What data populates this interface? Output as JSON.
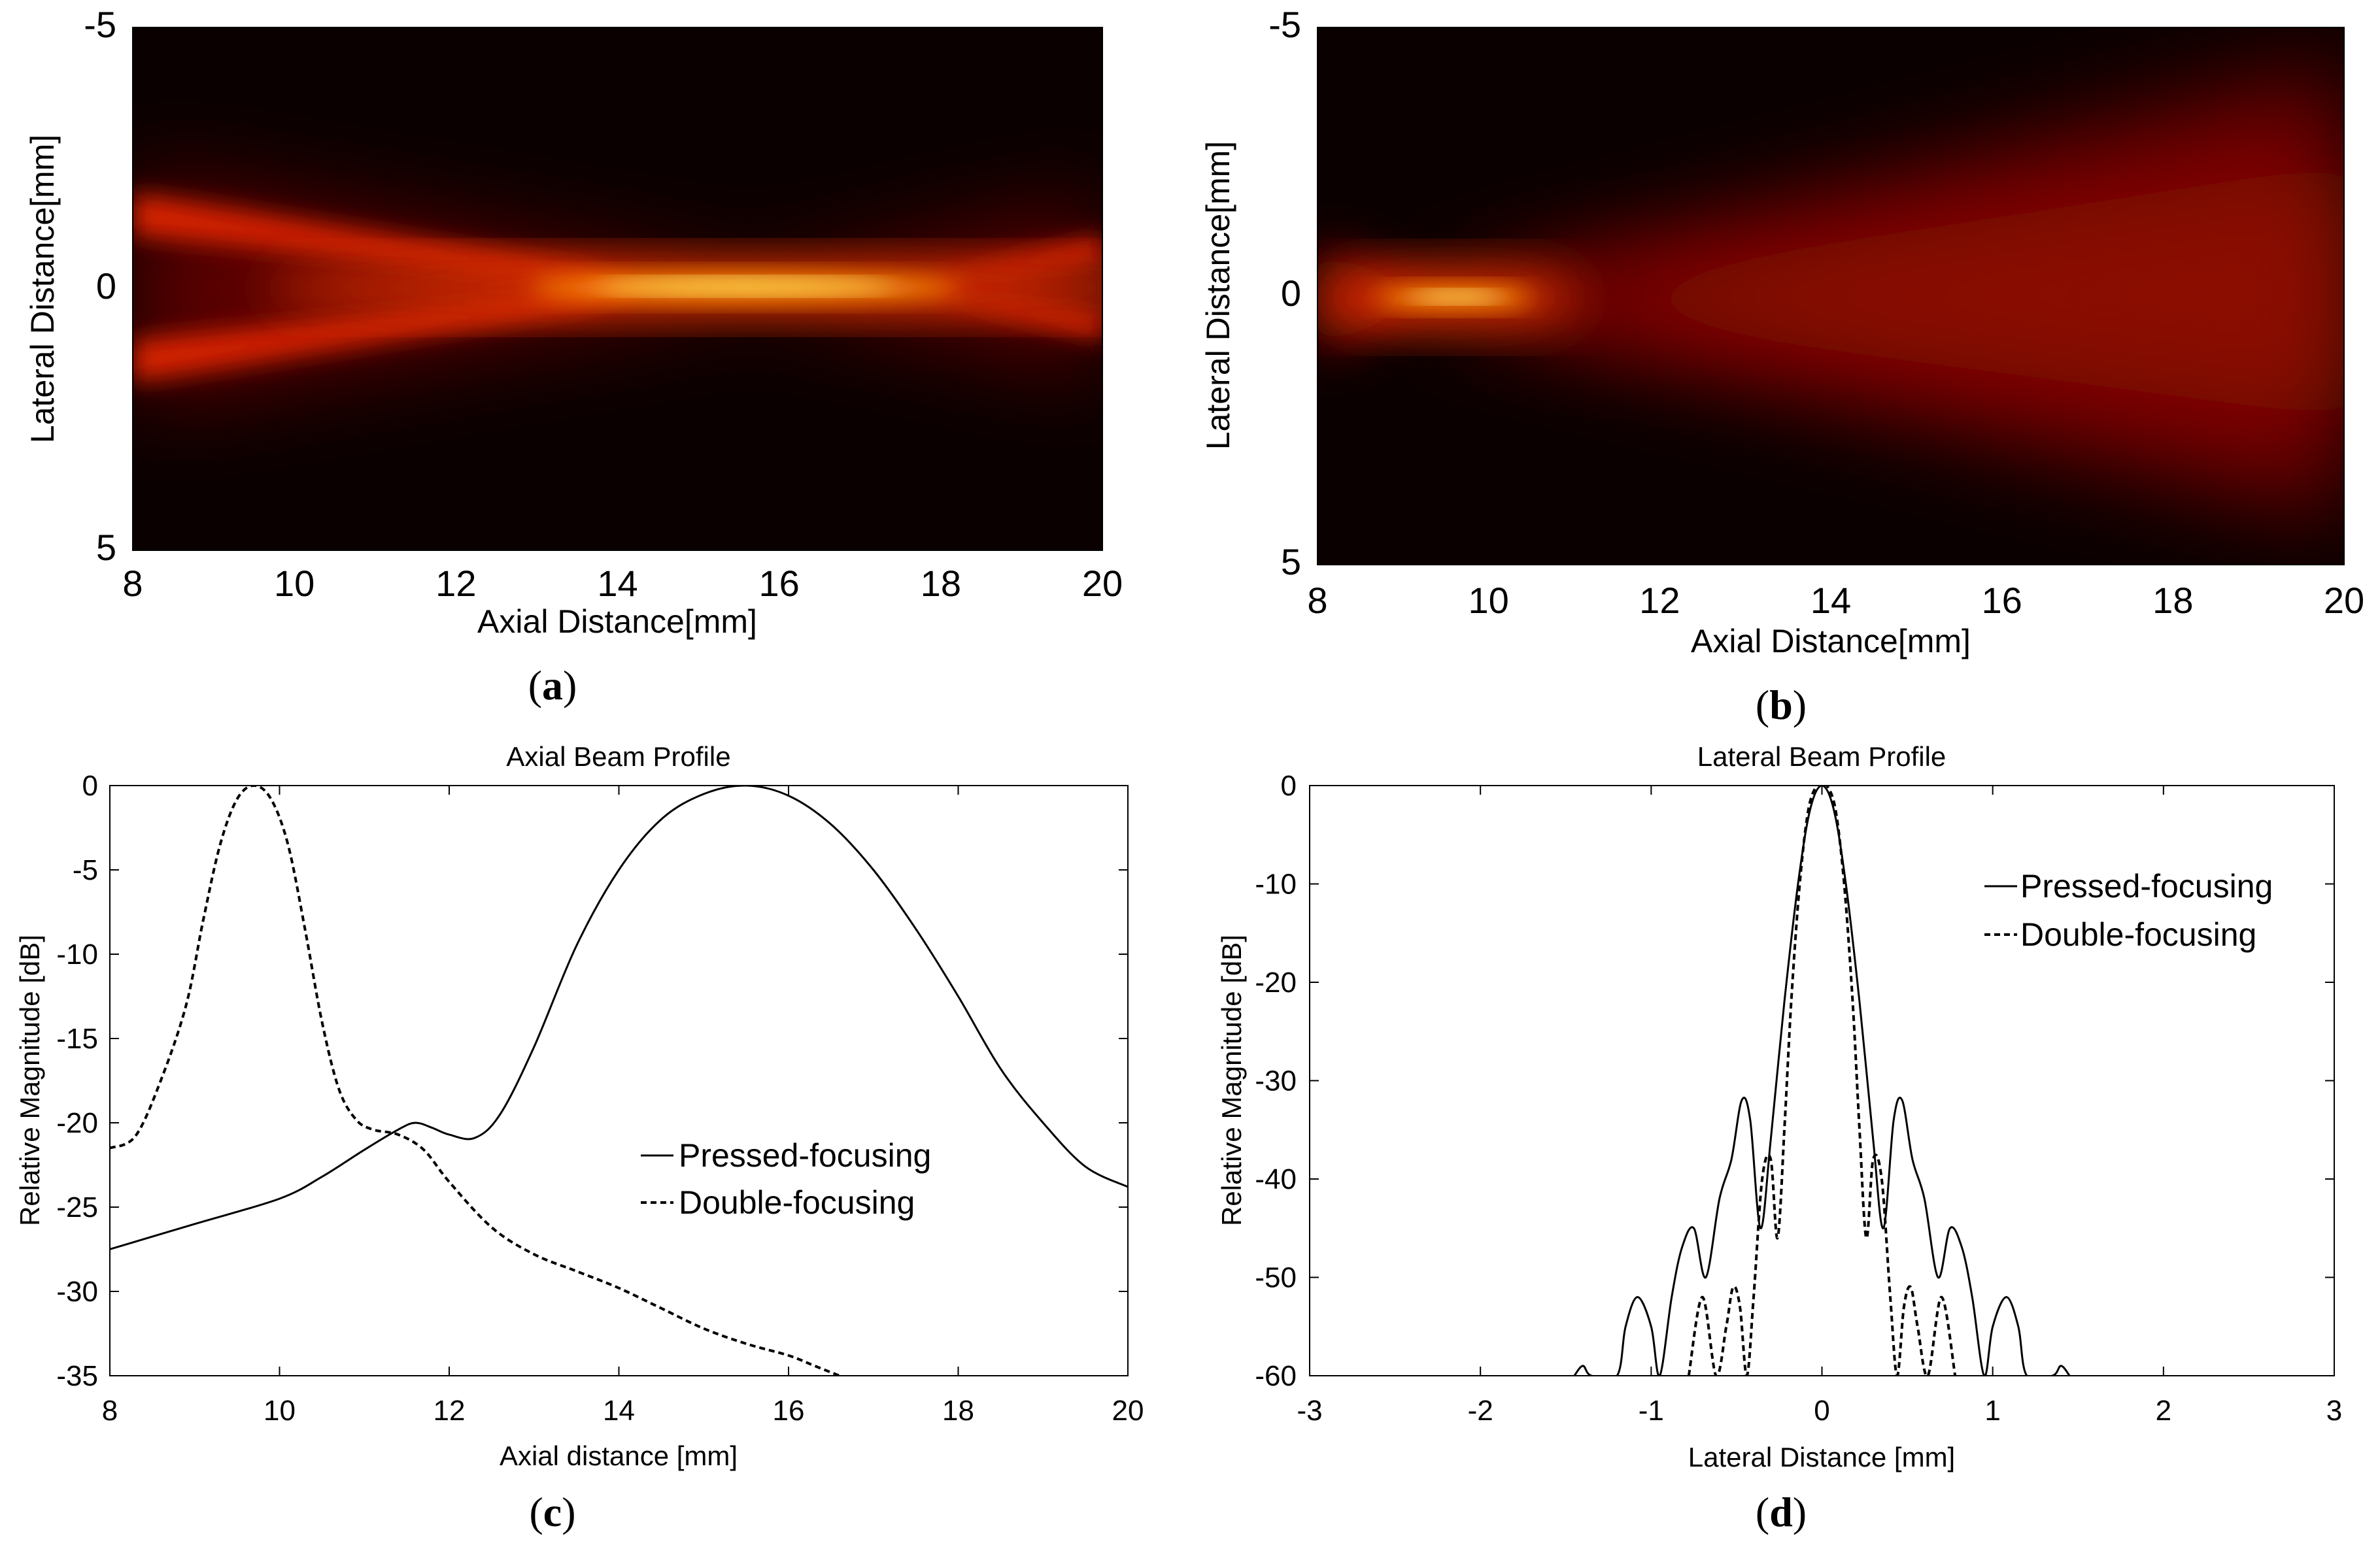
{
  "captions": {
    "a": {
      "open": "(",
      "letter": "a",
      "close": ")"
    },
    "b": {
      "open": "(",
      "letter": "b",
      "close": ")"
    },
    "c": {
      "open": "(",
      "letter": "c",
      "close": ")"
    },
    "d": {
      "open": "(",
      "letter": "d",
      "close": ")"
    }
  },
  "colors": {
    "heat_low": "#000000",
    "heat_mid": "#cc1100",
    "heat_high": "#ffff70",
    "line": "#000000"
  },
  "chart_data": [
    {
      "id": "a",
      "type": "heatmap",
      "title": "",
      "xlabel": "Axial Distance[mm]",
      "ylabel": "Lateral Distance[mm]",
      "xlim": [
        8,
        20
      ],
      "ylim": [
        -5,
        5
      ],
      "xticks": [
        "8",
        "10",
        "12",
        "14",
        "16",
        "18",
        "20"
      ],
      "yticks": [
        "-5",
        "0",
        "5"
      ],
      "colormap": "hot",
      "focus": {
        "axial_mm": 15.5,
        "lateral_mm": 0
      },
      "description": "Pressed-focusing beam field, focal zone around 14-17 mm"
    },
    {
      "id": "b",
      "type": "heatmap",
      "title": "",
      "xlabel": "Axial Distance[mm]",
      "ylabel": "Lateral Distance[mm]",
      "xlim": [
        8,
        20
      ],
      "ylim": [
        -5,
        5
      ],
      "xticks": [
        "8",
        "10",
        "12",
        "14",
        "16",
        "18",
        "20"
      ],
      "yticks": [
        "-5",
        "0",
        "5"
      ],
      "colormap": "hot",
      "focus": {
        "axial_mm": 9.8,
        "lateral_mm": 0
      },
      "description": "Double-focusing beam field, focal zone near 9.5-10.5 mm"
    },
    {
      "id": "c",
      "type": "line",
      "title": "Axial Beam Profile",
      "xlabel": "Axial distance [mm]",
      "ylabel": "Relative Magnitude [dB]",
      "xlim": [
        8,
        20
      ],
      "ylim": [
        -35,
        0
      ],
      "xticks": [
        "8",
        "10",
        "12",
        "14",
        "16",
        "18",
        "20"
      ],
      "yticks": [
        "0",
        "-5",
        "-10",
        "-15",
        "-20",
        "-25",
        "-30",
        "-35"
      ],
      "legend": {
        "position": "center-right",
        "entries": [
          "Pressed-focusing",
          "Double-focusing"
        ]
      },
      "series": [
        {
          "name": "Pressed-focusing",
          "style": "solid",
          "x": [
            8,
            9,
            10,
            10.5,
            11,
            11.4,
            11.6,
            11.8,
            12.0,
            12.3,
            12.6,
            13,
            13.5,
            14,
            14.5,
            15,
            15.5,
            16,
            16.5,
            17,
            17.5,
            18,
            18.5,
            19,
            19.5,
            20
          ],
          "y": [
            -27.5,
            -26.0,
            -24.5,
            -23.2,
            -21.6,
            -20.4,
            -20.0,
            -20.3,
            -20.7,
            -20.9,
            -19.5,
            -15.5,
            -9.5,
            -5.0,
            -2.0,
            -0.5,
            0,
            -0.6,
            -2.3,
            -5.0,
            -8.5,
            -12.5,
            -16.8,
            -20.0,
            -22.6,
            -23.8
          ]
        },
        {
          "name": "Double-focusing",
          "style": "dashed",
          "x": [
            8,
            8.3,
            8.6,
            8.9,
            9.1,
            9.3,
            9.5,
            9.7,
            9.9,
            10.1,
            10.3,
            10.5,
            10.7,
            10.9,
            11.1,
            11.4,
            11.7,
            12,
            12.5,
            13,
            13.5,
            14,
            14.5,
            15,
            15.5,
            16,
            16.3,
            16.6
          ],
          "y": [
            -21.5,
            -20.8,
            -17.5,
            -13.0,
            -8.0,
            -3.5,
            -0.8,
            0,
            -0.8,
            -3.5,
            -8.5,
            -14.0,
            -18.0,
            -19.8,
            -20.4,
            -20.7,
            -21.6,
            -23.5,
            -26.2,
            -27.8,
            -28.8,
            -29.8,
            -31.0,
            -32.2,
            -33.1,
            -33.8,
            -34.4,
            -35.0
          ]
        }
      ]
    },
    {
      "id": "d",
      "type": "line",
      "title": "Lateral Beam Profile",
      "xlabel": "Lateral Distance [mm]",
      "ylabel": "Relative Magnitude [dB]",
      "xlim": [
        -3,
        3
      ],
      "ylim": [
        -60,
        0
      ],
      "xticks": [
        "-3",
        "-2",
        "-1",
        "0",
        "1",
        "2",
        "3"
      ],
      "yticks": [
        "0",
        "-10",
        "-20",
        "-30",
        "-40",
        "-50",
        "-60"
      ],
      "legend": {
        "position": "top-right",
        "entries": [
          "Pressed-focusing",
          "Double-focusing"
        ]
      },
      "series": [
        {
          "name": "Pressed-focusing",
          "style": "solid",
          "x": [
            -1.45,
            -1.4,
            -1.35,
            -1.2,
            -1.15,
            -1.08,
            -1.0,
            -0.95,
            -0.88,
            -0.82,
            -0.75,
            -0.68,
            -0.6,
            -0.53,
            -0.47,
            -0.42,
            -0.36,
            -0.3,
            -0.22,
            -0.14,
            -0.07,
            0,
            0.07,
            0.14,
            0.22,
            0.3,
            0.36,
            0.42,
            0.47,
            0.53,
            0.6,
            0.68,
            0.75,
            0.82,
            0.88,
            0.95,
            1.0,
            1.08,
            1.15,
            1.2,
            1.35,
            1.4,
            1.45
          ],
          "y": [
            -60,
            -59,
            -60,
            -60,
            -55,
            -52,
            -55,
            -60,
            -52,
            -47,
            -45,
            -50,
            -42,
            -38,
            -32,
            -34,
            -45,
            -36,
            -22,
            -10,
            -2.5,
            0,
            -2.5,
            -10,
            -22,
            -36,
            -45,
            -34,
            -32,
            -38,
            -42,
            -50,
            -45,
            -47,
            -52,
            -60,
            -55,
            -52,
            -55,
            -60,
            -60,
            -59,
            -60
          ]
        },
        {
          "name": "Double-focusing",
          "style": "dashed",
          "x": [
            -0.78,
            -0.7,
            -0.62,
            -0.56,
            -0.52,
            -0.48,
            -0.44,
            -0.4,
            -0.35,
            -0.3,
            -0.26,
            -0.22,
            -0.18,
            -0.13,
            -0.08,
            -0.03,
            0,
            0.03,
            0.08,
            0.13,
            0.18,
            0.22,
            0.26,
            0.3,
            0.35,
            0.4,
            0.44,
            0.48,
            0.52,
            0.56,
            0.62,
            0.7,
            0.78
          ],
          "y": [
            -60,
            -52,
            -60,
            -55,
            -51,
            -53,
            -60,
            -52,
            -40,
            -38,
            -46,
            -35,
            -22,
            -10,
            -2.5,
            0,
            0,
            0,
            -2.5,
            -10,
            -22,
            -35,
            -46,
            -38,
            -40,
            -52,
            -60,
            -53,
            -51,
            -55,
            -60,
            -52,
            -60
          ]
        }
      ]
    }
  ]
}
